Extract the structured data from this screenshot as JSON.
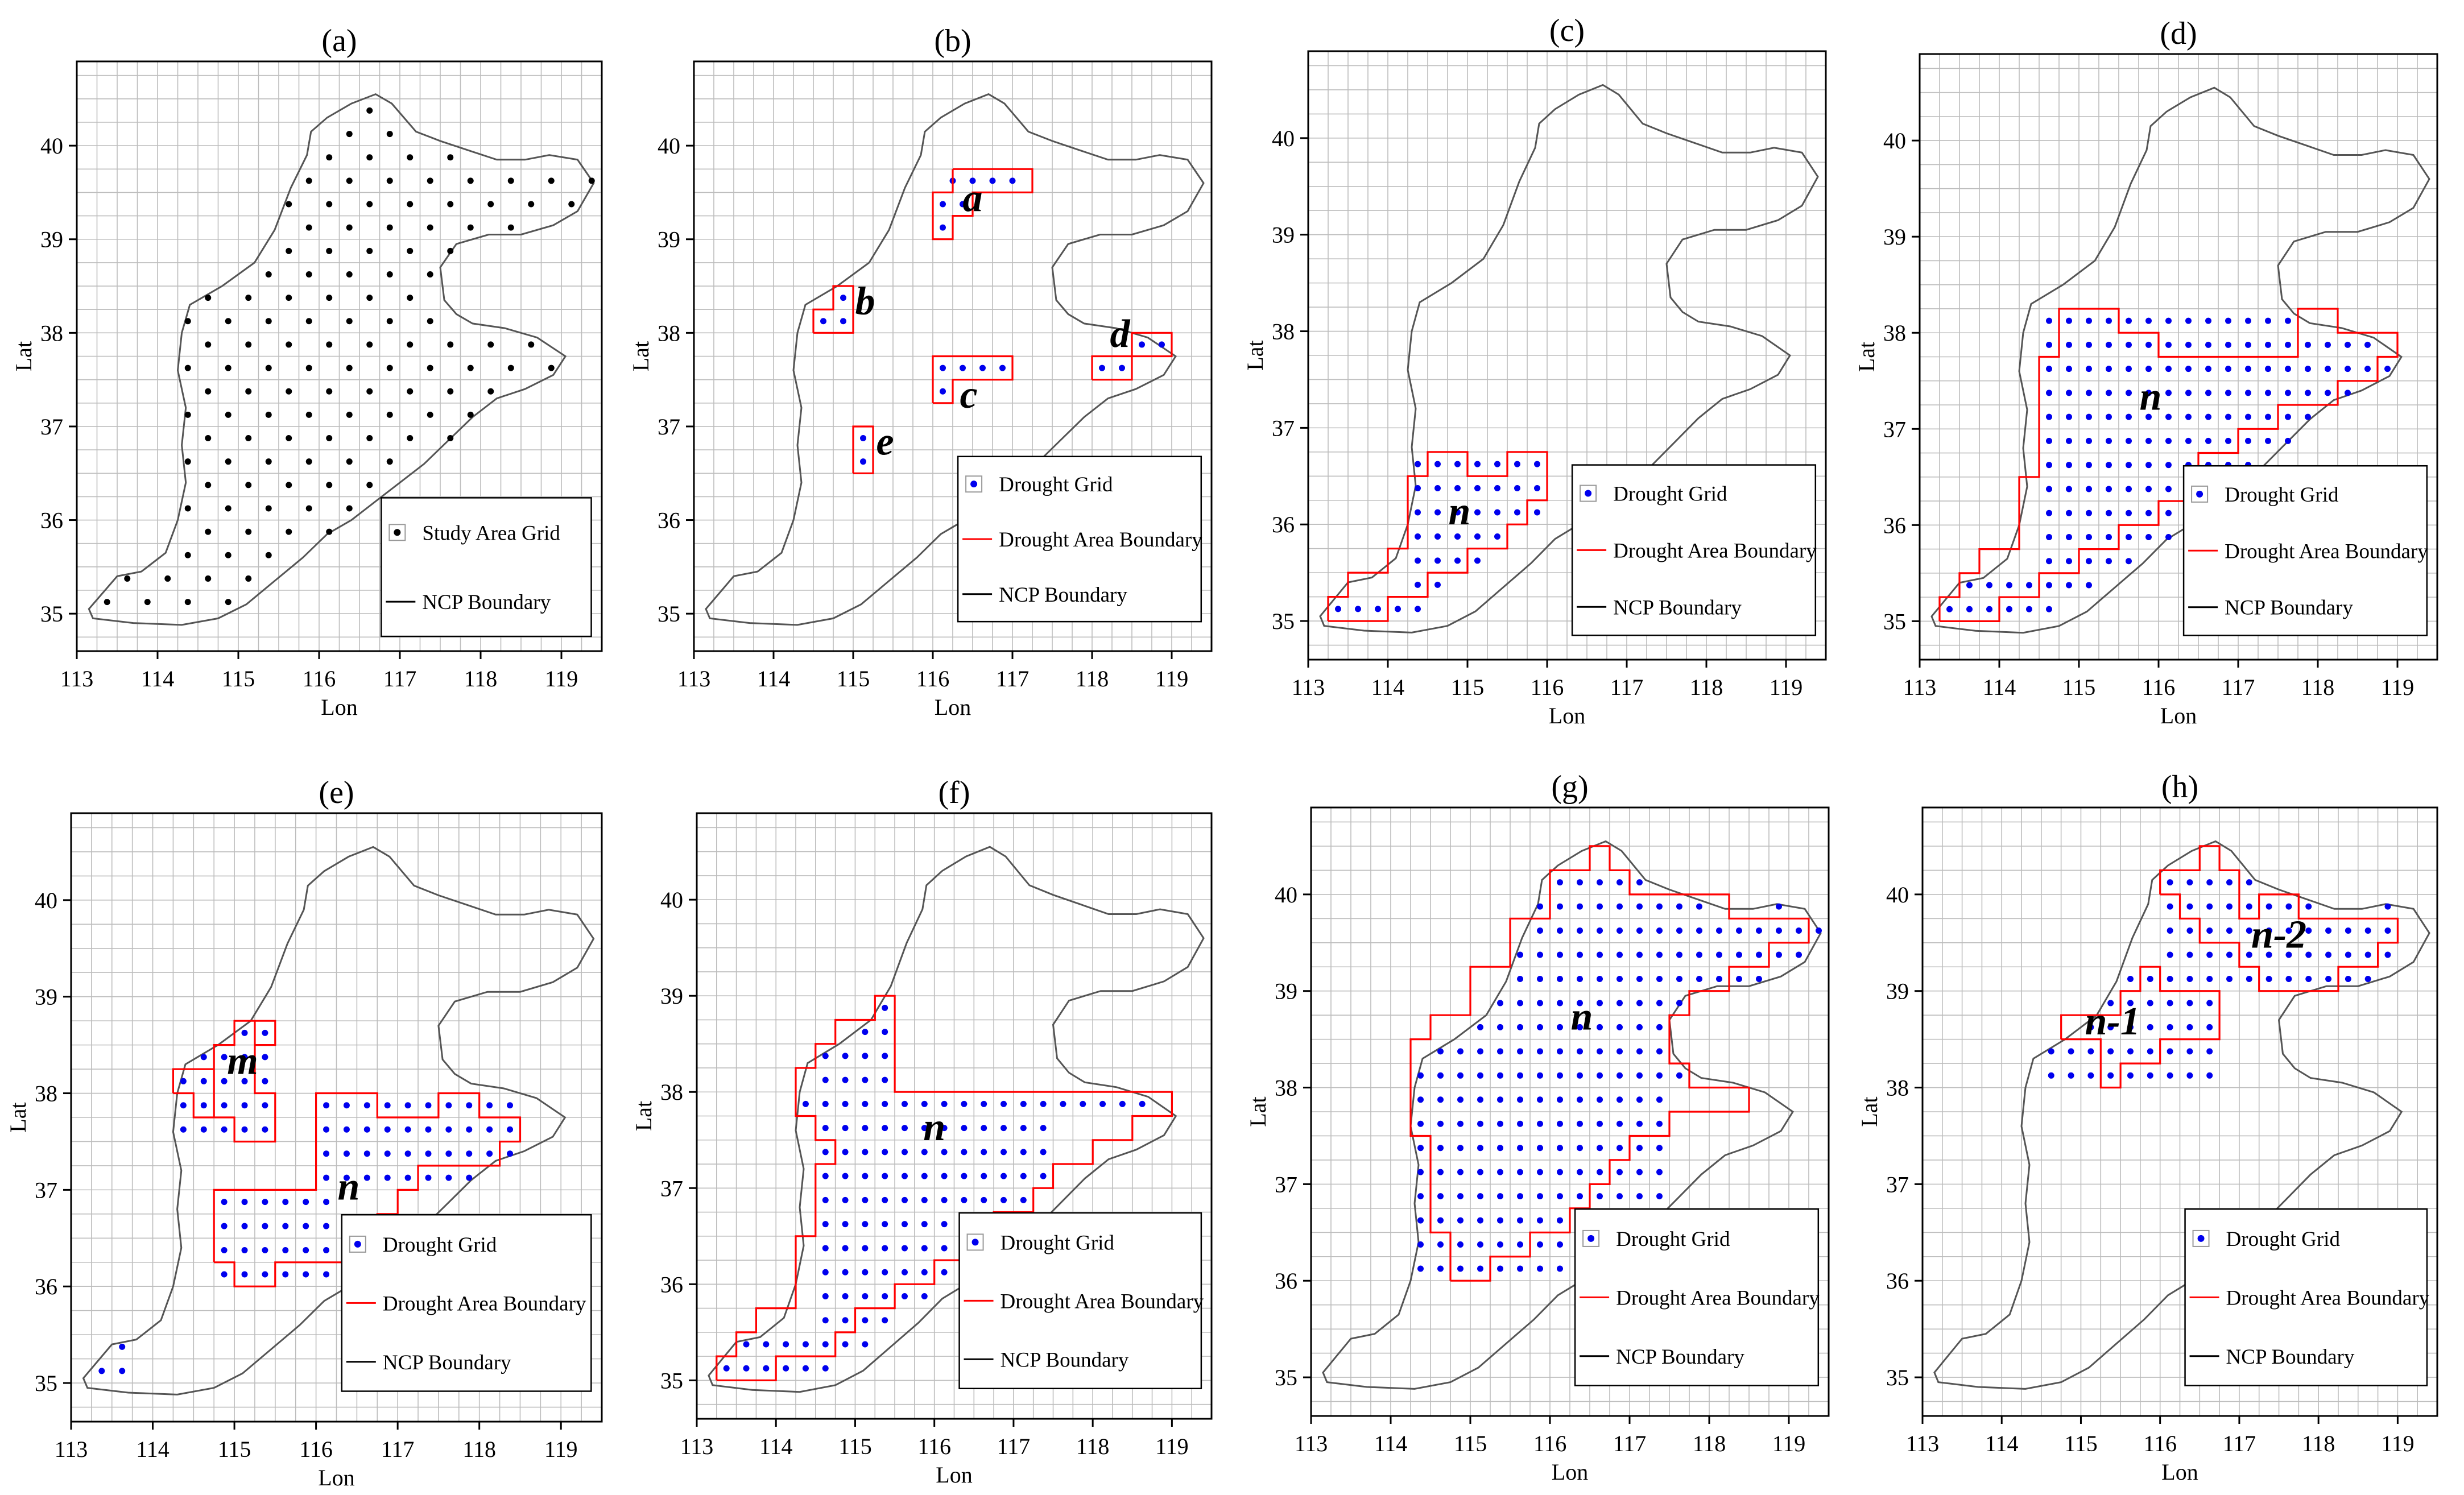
{
  "figure": {
    "colors": {
      "grid": "#bdbdbd",
      "frame": "#000000",
      "ncp_boundary": "#555555",
      "drought_grid": "#0000ee",
      "study_grid": "#000000",
      "drought_area_boundary": "#ff0000",
      "text": "#000000"
    }
  },
  "chart_data": [
    {
      "type": "scatter",
      "panel_label": "(a)",
      "xlabel": "Lon",
      "ylabel": "Lat",
      "xlim": [
        113,
        119.5
      ],
      "ylim": [
        34.6,
        40.9
      ],
      "x_ticks": [
        "113",
        "114",
        "115",
        "116",
        "117",
        "118",
        "119"
      ],
      "y_ticks": [
        "35",
        "36",
        "37",
        "38",
        "39",
        "40"
      ],
      "grid": true,
      "legend": {
        "position": "bottom-right",
        "entries": [
          {
            "label": "Study Area Grid",
            "marker": "black-dot"
          },
          {
            "label": "NCP Boundary",
            "marker": "black-line"
          }
        ]
      },
      "points_description": "study area grid cells at 0.25 degree spacing covering the NCP",
      "annotations": []
    },
    {
      "type": "scatter",
      "panel_label": "(b)",
      "xlabel": "Lon",
      "ylabel": "Lat",
      "xlim": [
        113,
        119.5
      ],
      "ylim": [
        34.6,
        40.9
      ],
      "x_ticks": [
        "113",
        "114",
        "115",
        "116",
        "117",
        "118",
        "119"
      ],
      "y_ticks": [
        "35",
        "36",
        "37",
        "38",
        "39",
        "40"
      ],
      "grid": true,
      "legend": {
        "position": "bottom-right",
        "entries": [
          {
            "label": "Drought Grid",
            "marker": "blue-dot"
          },
          {
            "label": "Drought Area Boundary",
            "marker": "red-line"
          },
          {
            "label": "NCP Boundary",
            "marker": "black-line"
          }
        ]
      },
      "drought_cells": [
        [
          116.25,
          39.625
        ],
        [
          116.5,
          39.625
        ],
        [
          116.75,
          39.625
        ],
        [
          117.0,
          39.625
        ],
        [
          116.125,
          39.375
        ],
        [
          116.375,
          39.375
        ],
        [
          116.125,
          39.125
        ],
        [
          114.625,
          38.125
        ],
        [
          114.875,
          38.125
        ],
        [
          114.875,
          38.375
        ],
        [
          116.125,
          37.625
        ],
        [
          116.375,
          37.625
        ],
        [
          116.625,
          37.625
        ],
        [
          116.875,
          37.625
        ],
        [
          116.125,
          37.375
        ],
        [
          115.125,
          36.875
        ],
        [
          115.125,
          36.625
        ],
        [
          118.125,
          37.625
        ],
        [
          118.375,
          37.625
        ],
        [
          118.625,
          37.875
        ],
        [
          118.875,
          37.875
        ]
      ],
      "annotations": [
        {
          "text": "a",
          "at": [
            116.5,
            39.3
          ]
        },
        {
          "text": "b",
          "at": [
            115.15,
            38.2
          ]
        },
        {
          "text": "c",
          "at": [
            116.45,
            37.2
          ]
        },
        {
          "text": "d",
          "at": [
            118.35,
            37.85
          ]
        },
        {
          "text": "e",
          "at": [
            115.4,
            36.7
          ]
        }
      ]
    },
    {
      "type": "scatter",
      "panel_label": "(c)",
      "xlabel": "Lon",
      "ylabel": "Lat",
      "xlim": [
        113,
        119.5
      ],
      "ylim": [
        34.6,
        40.9
      ],
      "x_ticks": [
        "113",
        "114",
        "115",
        "116",
        "117",
        "118",
        "119"
      ],
      "y_ticks": [
        "35",
        "36",
        "37",
        "38",
        "39",
        "40"
      ],
      "grid": true,
      "legend": {
        "position": "bottom-right",
        "entries": [
          {
            "label": "Drought Grid",
            "marker": "blue-dot"
          },
          {
            "label": "Drought Area Boundary",
            "marker": "red-line"
          },
          {
            "label": "NCP Boundary",
            "marker": "black-line"
          }
        ]
      },
      "annotations": [
        {
          "text": "n",
          "at": [
            114.9,
            36.0
          ]
        }
      ]
    },
    {
      "type": "scatter",
      "panel_label": "(d)",
      "xlabel": "Lon",
      "ylabel": "Lat",
      "xlim": [
        113,
        119.5
      ],
      "ylim": [
        34.6,
        40.9
      ],
      "x_ticks": [
        "113",
        "114",
        "115",
        "116",
        "117",
        "118",
        "119"
      ],
      "y_ticks": [
        "35",
        "36",
        "37",
        "38",
        "39",
        "40"
      ],
      "grid": true,
      "legend": {
        "position": "bottom-right",
        "entries": [
          {
            "label": "Drought Grid",
            "marker": "blue-dot"
          },
          {
            "label": "Drought Area Boundary",
            "marker": "red-line"
          },
          {
            "label": "NCP Boundary",
            "marker": "black-line"
          }
        ]
      },
      "annotations": [
        {
          "text": "n",
          "at": [
            115.9,
            37.2
          ]
        }
      ]
    },
    {
      "type": "scatter",
      "panel_label": "(e)",
      "xlabel": "Lon",
      "ylabel": "Lat",
      "xlim": [
        113,
        119.5
      ],
      "ylim": [
        34.6,
        40.9
      ],
      "x_ticks": [
        "113",
        "114",
        "115",
        "116",
        "117",
        "118",
        "119"
      ],
      "y_ticks": [
        "35",
        "36",
        "37",
        "38",
        "39",
        "40"
      ],
      "grid": true,
      "legend": {
        "position": "bottom-right",
        "entries": [
          {
            "label": "Drought Grid",
            "marker": "blue-dot"
          },
          {
            "label": "Drought Area Boundary",
            "marker": "red-line"
          },
          {
            "label": "NCP Boundary",
            "marker": "black-line"
          }
        ]
      },
      "annotations": [
        {
          "text": "m",
          "at": [
            115.1,
            38.2
          ]
        },
        {
          "text": "n",
          "at": [
            116.4,
            36.9
          ]
        }
      ]
    },
    {
      "type": "scatter",
      "panel_label": "(f)",
      "xlabel": "Lon",
      "ylabel": "Lat",
      "xlim": [
        113,
        119.5
      ],
      "ylim": [
        34.6,
        40.9
      ],
      "x_ticks": [
        "113",
        "114",
        "115",
        "116",
        "117",
        "118",
        "119"
      ],
      "y_ticks": [
        "35",
        "36",
        "37",
        "38",
        "39",
        "40"
      ],
      "grid": true,
      "legend": {
        "position": "bottom-right",
        "entries": [
          {
            "label": "Drought Grid",
            "marker": "blue-dot"
          },
          {
            "label": "Drought Area Boundary",
            "marker": "red-line"
          },
          {
            "label": "NCP Boundary",
            "marker": "black-line"
          }
        ]
      },
      "annotations": [
        {
          "text": "n",
          "at": [
            116.0,
            37.5
          ]
        }
      ]
    },
    {
      "type": "scatter",
      "panel_label": "(g)",
      "xlabel": "Lon",
      "ylabel": "Lat",
      "xlim": [
        113,
        119.5
      ],
      "ylim": [
        34.6,
        40.9
      ],
      "x_ticks": [
        "113",
        "114",
        "115",
        "116",
        "117",
        "118",
        "119"
      ],
      "y_ticks": [
        "35",
        "36",
        "37",
        "38",
        "39",
        "40"
      ],
      "grid": true,
      "legend": {
        "position": "bottom-right",
        "entries": [
          {
            "label": "Drought Grid",
            "marker": "blue-dot"
          },
          {
            "label": "Drought Area Boundary",
            "marker": "red-line"
          },
          {
            "label": "NCP Boundary",
            "marker": "black-line"
          }
        ]
      },
      "annotations": [
        {
          "text": "n",
          "at": [
            116.4,
            38.6
          ]
        }
      ]
    },
    {
      "type": "scatter",
      "panel_label": "(h)",
      "xlabel": "Lon",
      "ylabel": "Lat",
      "xlim": [
        113,
        119.5
      ],
      "ylim": [
        34.6,
        40.9
      ],
      "x_ticks": [
        "113",
        "114",
        "115",
        "116",
        "117",
        "118",
        "119"
      ],
      "y_ticks": [
        "35",
        "36",
        "37",
        "38",
        "39",
        "40"
      ],
      "grid": true,
      "legend": {
        "position": "bottom-right",
        "entries": [
          {
            "label": "Drought Grid",
            "marker": "blue-dot"
          },
          {
            "label": "Drought Area Boundary",
            "marker": "red-line"
          },
          {
            "label": "NCP Boundary",
            "marker": "black-line"
          }
        ]
      },
      "annotations": [
        {
          "text": "n-1",
          "at": [
            115.4,
            38.55
          ]
        },
        {
          "text": "n-2",
          "at": [
            117.5,
            39.45
          ]
        }
      ]
    }
  ]
}
